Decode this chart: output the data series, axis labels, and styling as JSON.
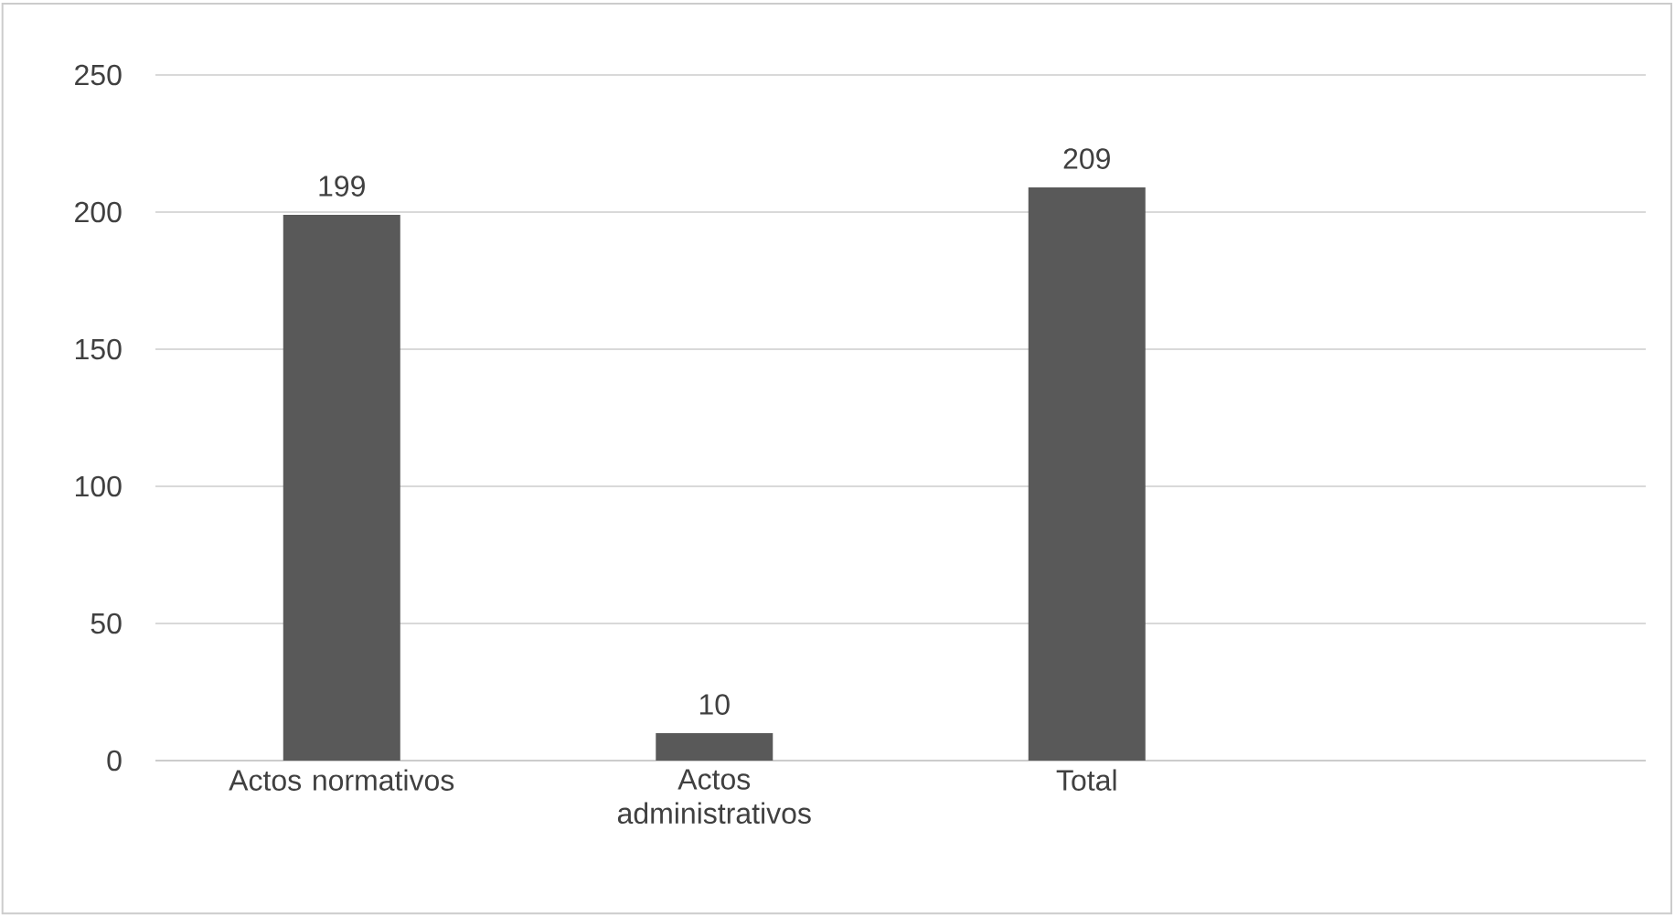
{
  "chart_data": {
    "type": "bar",
    "categories": [
      "Actos normativos",
      "Actos administrativos",
      "Total",
      null
    ],
    "values": [
      199,
      10,
      209,
      null
    ],
    "color": "#595959",
    "ylim": [
      0,
      250
    ],
    "yticks": [
      0,
      50,
      100,
      150,
      200,
      250
    ],
    "grid": "y",
    "data_labels": true
  }
}
